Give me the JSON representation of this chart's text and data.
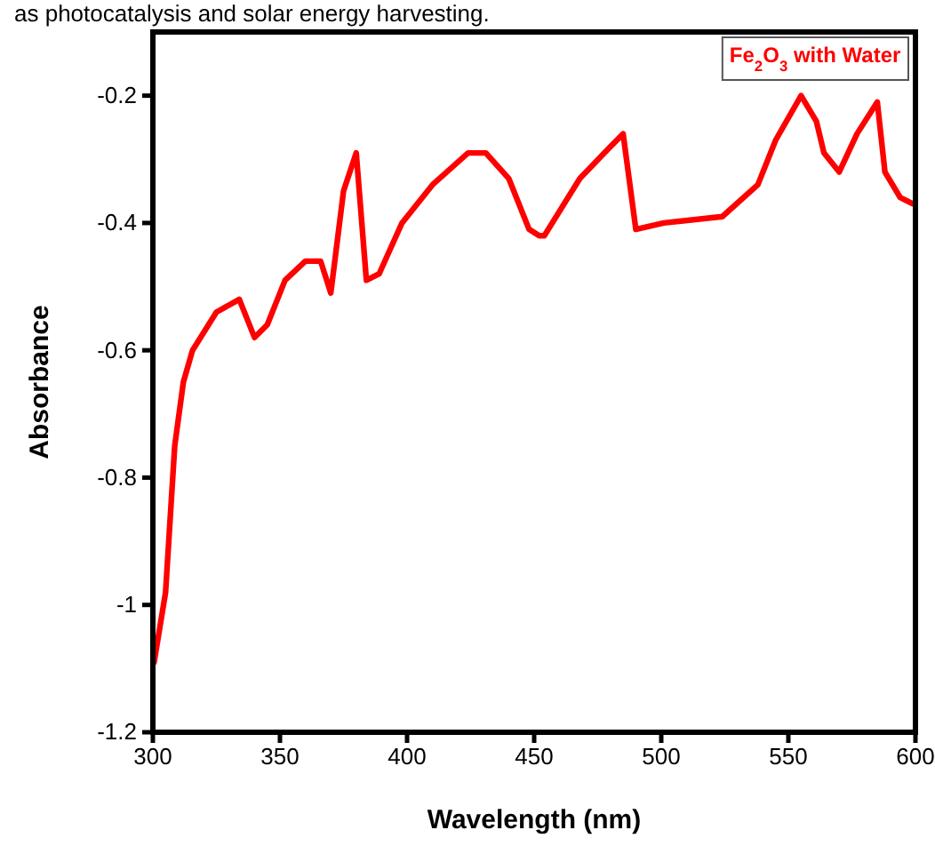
{
  "chart_data": {
    "type": "line",
    "xlabel": "Wavelength (nm)",
    "ylabel": "Absorbance",
    "annotations": [
      "as photocatalysis and solar energy harvesting."
    ],
    "xlim": [
      300,
      600
    ],
    "xticks": [
      300,
      350,
      400,
      450,
      500,
      550,
      600
    ],
    "ylim": [
      -1.2,
      -0.1
    ],
    "yticks": [
      -1.2,
      -1.0,
      -0.8,
      -0.6,
      -0.4,
      -0.2
    ],
    "grid": false,
    "marker": "none",
    "line_style": "solid",
    "series": [
      {
        "name": "Fe$_{2}$O$_{3}$ with Water",
        "color": "#ff0000",
        "x": [
          300.5,
          305,
          308.6,
          312,
          315.6,
          325,
          334,
          340,
          345,
          352,
          360,
          366,
          370,
          375,
          380,
          384,
          389,
          398,
          410,
          424,
          431,
          440,
          448,
          452,
          454,
          468,
          480,
          485,
          490,
          501,
          524,
          538,
          545,
          555,
          561,
          564,
          570,
          577,
          585,
          588,
          594,
          599
        ],
        "values": [
          -1.09,
          -0.98,
          -0.75,
          -0.65,
          -0.6,
          -0.54,
          -0.52,
          -0.58,
          -0.56,
          -0.49,
          -0.46,
          -0.46,
          -0.51,
          -0.35,
          -0.29,
          -0.49,
          -0.48,
          -0.4,
          -0.34,
          -0.29,
          -0.29,
          -0.33,
          -0.41,
          -0.42,
          -0.42,
          -0.33,
          -0.28,
          -0.26,
          -0.41,
          -0.4,
          -0.39,
          -0.34,
          -0.27,
          -0.2,
          -0.24,
          -0.29,
          -0.32,
          -0.26,
          -0.21,
          -0.32,
          -0.36,
          -0.37
        ]
      }
    ]
  }
}
